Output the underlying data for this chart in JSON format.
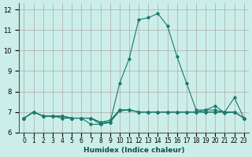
{
  "xlabel": "Humidex (Indice chaleur)",
  "ylabel": "",
  "xlim": [
    -0.5,
    23.5
  ],
  "ylim": [
    6.0,
    12.3
  ],
  "yticks": [
    6,
    7,
    8,
    9,
    10,
    11,
    12
  ],
  "xtick_labels": [
    "0",
    "1",
    "2",
    "3",
    "4",
    "5",
    "6",
    "7",
    "8",
    "9",
    "10",
    "11",
    "12",
    "13",
    "14",
    "15",
    "16",
    "17",
    "18",
    "19",
    "20",
    "21",
    "22",
    "23"
  ],
  "bg_color": "#cceee8",
  "grid_color": "#aaaaaa",
  "line_color": "#1a7a6e",
  "series": [
    [
      6.7,
      7.0,
      6.8,
      6.8,
      6.8,
      6.7,
      6.7,
      6.7,
      6.5,
      6.6,
      7.1,
      7.1,
      7.0,
      7.0,
      7.0,
      7.0,
      7.0,
      7.0,
      7.0,
      7.1,
      7.1,
      7.0,
      7.7,
      6.7
    ],
    [
      6.7,
      7.0,
      6.8,
      6.8,
      6.8,
      6.7,
      6.7,
      6.4,
      6.4,
      6.5,
      8.4,
      9.6,
      11.5,
      11.6,
      11.8,
      11.2,
      9.7,
      8.4,
      7.1,
      7.1,
      7.3,
      6.95,
      7.0,
      6.7
    ],
    [
      6.7,
      7.0,
      6.8,
      6.8,
      6.8,
      6.7,
      6.7,
      6.7,
      6.5,
      6.5,
      7.1,
      7.1,
      7.0,
      7.0,
      7.0,
      7.0,
      7.0,
      7.0,
      7.0,
      7.0,
      7.0,
      7.0,
      7.0,
      6.7
    ],
    [
      6.7,
      7.0,
      6.8,
      6.8,
      6.7,
      6.7,
      6.7,
      6.7,
      6.4,
      6.5,
      7.05,
      7.1,
      7.0,
      7.0,
      7.0,
      7.0,
      7.0,
      7.0,
      7.0,
      7.0,
      7.0,
      7.0,
      7.0,
      6.7
    ]
  ]
}
